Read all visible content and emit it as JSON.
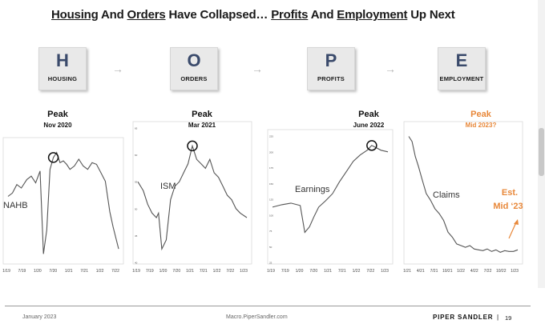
{
  "title": {
    "w1": "Housing",
    "w2": "And",
    "w3": "Orders",
    "w4": "Have Collapsed…",
    "w5": "Profits",
    "w6": "And",
    "w7": "Employment",
    "w8": "Up Next"
  },
  "stages": [
    {
      "letter": "H",
      "word": "HOUSING"
    },
    {
      "letter": "O",
      "word": "ORDERS"
    },
    {
      "letter": "P",
      "word": "PROFITS"
    },
    {
      "letter": "E",
      "word": "EMPLOYMENT"
    }
  ],
  "arrow_glyph": "→",
  "colors": {
    "orange": "#e8883a",
    "box_text": "#3a4a6b",
    "line": "#555555"
  },
  "chart_data": [
    {
      "type": "line",
      "series_label": "NAHB",
      "peak_label": "Peak",
      "peak_date": "Nov 2020",
      "xticks": [
        "1/19",
        "7/19",
        "1/20",
        "7/20",
        "1/21",
        "7/21",
        "1/22",
        "7/22"
      ],
      "x": [
        0,
        0.04,
        0.08,
        0.12,
        0.17,
        0.21,
        0.25,
        0.29,
        0.32,
        0.35,
        0.38,
        0.41,
        0.44,
        0.47,
        0.5,
        0.53,
        0.56,
        0.6,
        0.64,
        0.68,
        0.72,
        0.76,
        0.8,
        0.84,
        0.88,
        0.92,
        0.95,
        1.0
      ],
      "y": [
        64,
        66,
        71,
        69,
        74,
        76,
        72,
        79,
        30,
        44,
        80,
        87,
        90,
        84,
        85,
        83,
        80,
        82,
        86,
        82,
        80,
        84,
        83,
        78,
        73,
        55,
        46,
        33
      ]
    },
    {
      "type": "line",
      "series_label": "ISM",
      "peak_label": "Peak",
      "peak_date": "Mar 2021",
      "yticks": [
        "65",
        "60",
        "55",
        "50",
        "45",
        "40"
      ],
      "xticks": [
        "1/19",
        "7/19",
        "1/20",
        "7/20",
        "1/21",
        "7/21",
        "1/22",
        "7/22",
        "1/23"
      ],
      "x": [
        0,
        0.05,
        0.09,
        0.13,
        0.17,
        0.19,
        0.22,
        0.26,
        0.3,
        0.34,
        0.38,
        0.42,
        0.46,
        0.5,
        0.54,
        0.58,
        0.62,
        0.66,
        0.7,
        0.74,
        0.78,
        0.82,
        0.86,
        0.9,
        0.94,
        1.0
      ],
      "y": [
        56,
        54,
        51,
        49,
        48,
        49,
        41,
        43,
        52,
        55,
        56,
        58,
        60,
        64,
        61,
        60,
        59,
        61,
        58,
        57,
        55,
        53,
        52,
        50,
        49,
        48
      ]
    },
    {
      "type": "line",
      "series_label": "Earnings",
      "peak_label": "Peak",
      "peak_date": "June 2022",
      "yticks": [
        "225",
        "200",
        "175",
        "150",
        "125",
        "100",
        "75",
        "50",
        "25"
      ],
      "xticks": [
        "1/19",
        "7/19",
        "1/20",
        "7/20",
        "1/21",
        "7/21",
        "1/22",
        "7/22",
        "1/23"
      ],
      "x": [
        0,
        0.08,
        0.16,
        0.24,
        0.28,
        0.32,
        0.36,
        0.4,
        0.46,
        0.52,
        0.58,
        0.64,
        0.7,
        0.76,
        0.82,
        0.86,
        0.9,
        0.94,
        1.0
      ],
      "y": [
        160,
        163,
        165,
        162,
        128,
        135,
        148,
        160,
        168,
        177,
        192,
        205,
        218,
        226,
        232,
        238,
        235,
        232,
        230
      ]
    },
    {
      "type": "line",
      "series_label": "Claims",
      "peak_label": "Peak",
      "peak_date": "Mid 2023?",
      "annotation_line1": "Est.",
      "annotation_line2": "Mid ‘23",
      "xticks": [
        "1/21",
        "4/21",
        "7/21",
        "10/21",
        "1/22",
        "4/22",
        "7/22",
        "10/22",
        "1/23"
      ],
      "x": [
        0,
        0.03,
        0.06,
        0.09,
        0.12,
        0.16,
        0.2,
        0.24,
        0.28,
        0.32,
        0.36,
        0.4,
        0.44,
        0.48,
        0.52,
        0.56,
        0.6,
        0.64,
        0.68,
        0.72,
        0.76,
        0.8,
        0.84,
        0.88,
        0.92,
        0.96,
        1.0
      ],
      "y": [
        900,
        870,
        780,
        720,
        650,
        560,
        520,
        470,
        440,
        400,
        330,
        300,
        260,
        250,
        240,
        250,
        230,
        225,
        220,
        230,
        215,
        225,
        210,
        220,
        215,
        215,
        225
      ]
    }
  ],
  "footer": {
    "date": "January 2023",
    "url": "Macro.PiperSandler.com",
    "brand": "PIPER SANDLER",
    "separator": "|",
    "page": "19"
  }
}
